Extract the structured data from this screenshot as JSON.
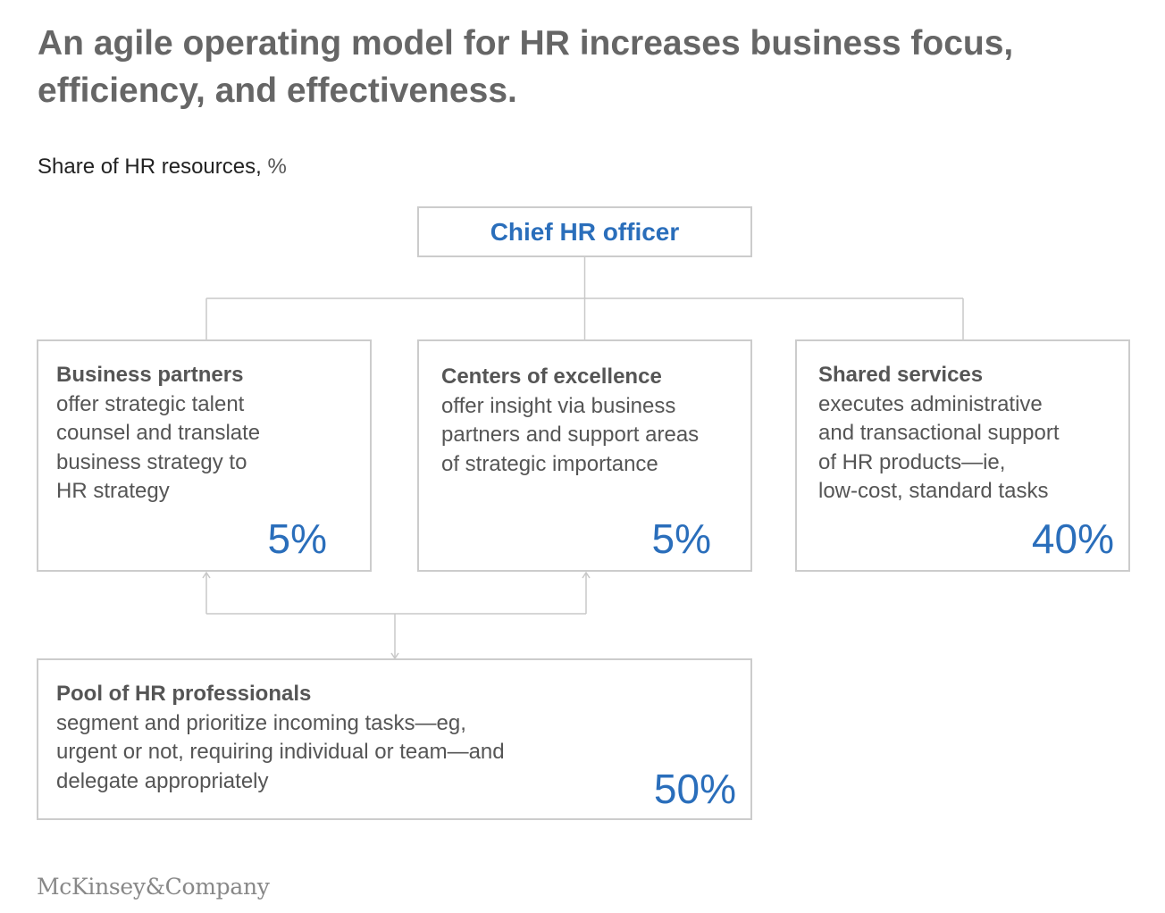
{
  "title": "An agile operating model for HR increases business focus, efficiency, and effectiveness.",
  "subtitle": {
    "label": "Share of HR resources,",
    "unit": "%"
  },
  "ceo": {
    "label": "Chief HR officer"
  },
  "units": [
    {
      "key": "business-partners",
      "title": "Business partners",
      "lines": [
        "offer strategic talent",
        "counsel and translate",
        "business strategy to",
        "HR strategy"
      ],
      "share": "5%"
    },
    {
      "key": "centers-of-excellence",
      "title": "Centers of excellence",
      "lines": [
        "offer insight via business",
        "partners and support areas",
        "of strategic importance"
      ],
      "share": "5%"
    },
    {
      "key": "shared-services",
      "title": "Shared services",
      "lines": [
        "executes administrative",
        "and transactional support",
        "of HR products—ie,",
        "low-cost, standard tasks"
      ],
      "share": "40%"
    },
    {
      "key": "pool-of-hr-professionals",
      "title": "Pool of HR professionals",
      "lines": [
        "segment and prioritize incoming tasks—eg,",
        "urgent or not, requiring individual or team—and",
        "delegate appropriately"
      ],
      "share": "50%"
    }
  ],
  "footer": {
    "logo": "McKinsey&Company"
  },
  "colors": {
    "accent": "#2a6ebb",
    "border": "#cccccc",
    "text": "#555555"
  }
}
